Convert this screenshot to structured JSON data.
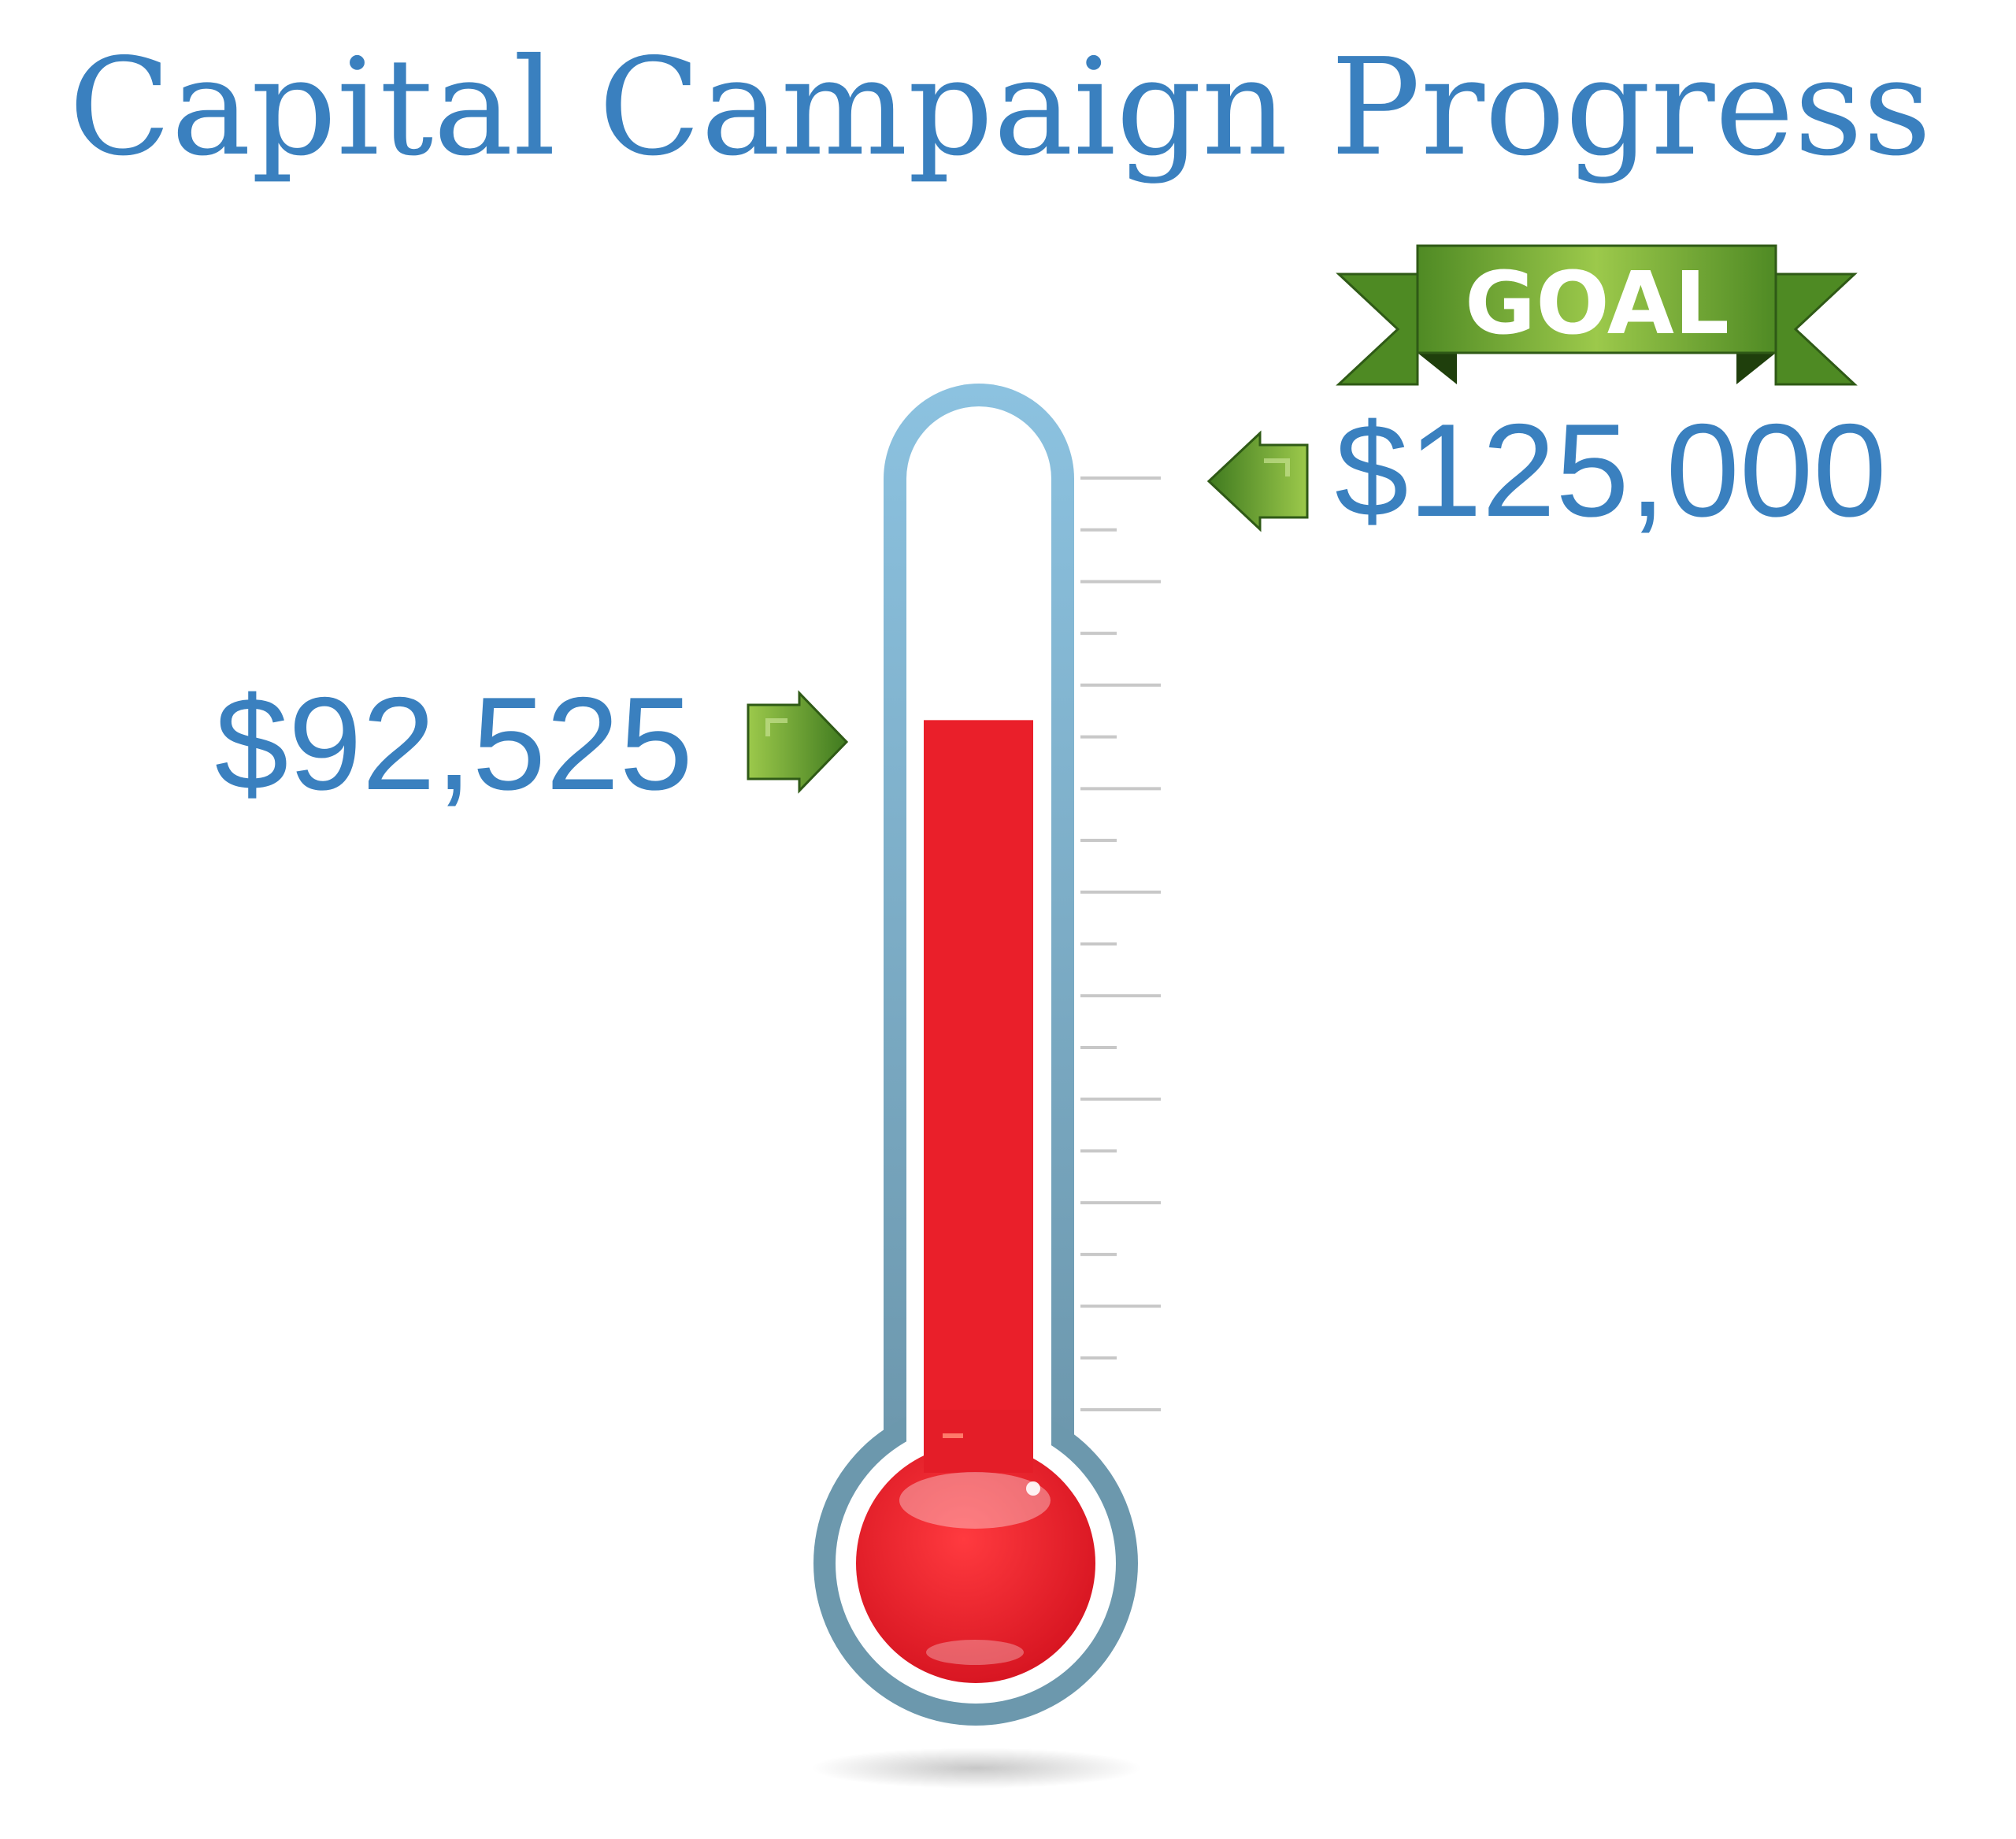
{
  "chart_data": {
    "type": "thermometer",
    "title": "Capital Campaign Progress",
    "goal_badge": "GOAL",
    "goal_value": 125000,
    "goal_label": "$125,000",
    "current_value": 92525,
    "current_label": "$92,525",
    "tick_count": 19,
    "colors": {
      "title": "#3a80bf",
      "amount": "#3a80bf",
      "mercury": "#ea1f2a",
      "tube_outline_top": "#8cc0df",
      "tube_outline_bottom": "#6e9aaf",
      "ticks": "#c8c8c8",
      "goal_ribbon": "#5c9a2e",
      "goal_ribbon_dark": "#3f6f1d",
      "arrow_green": "#6aa535"
    }
  }
}
